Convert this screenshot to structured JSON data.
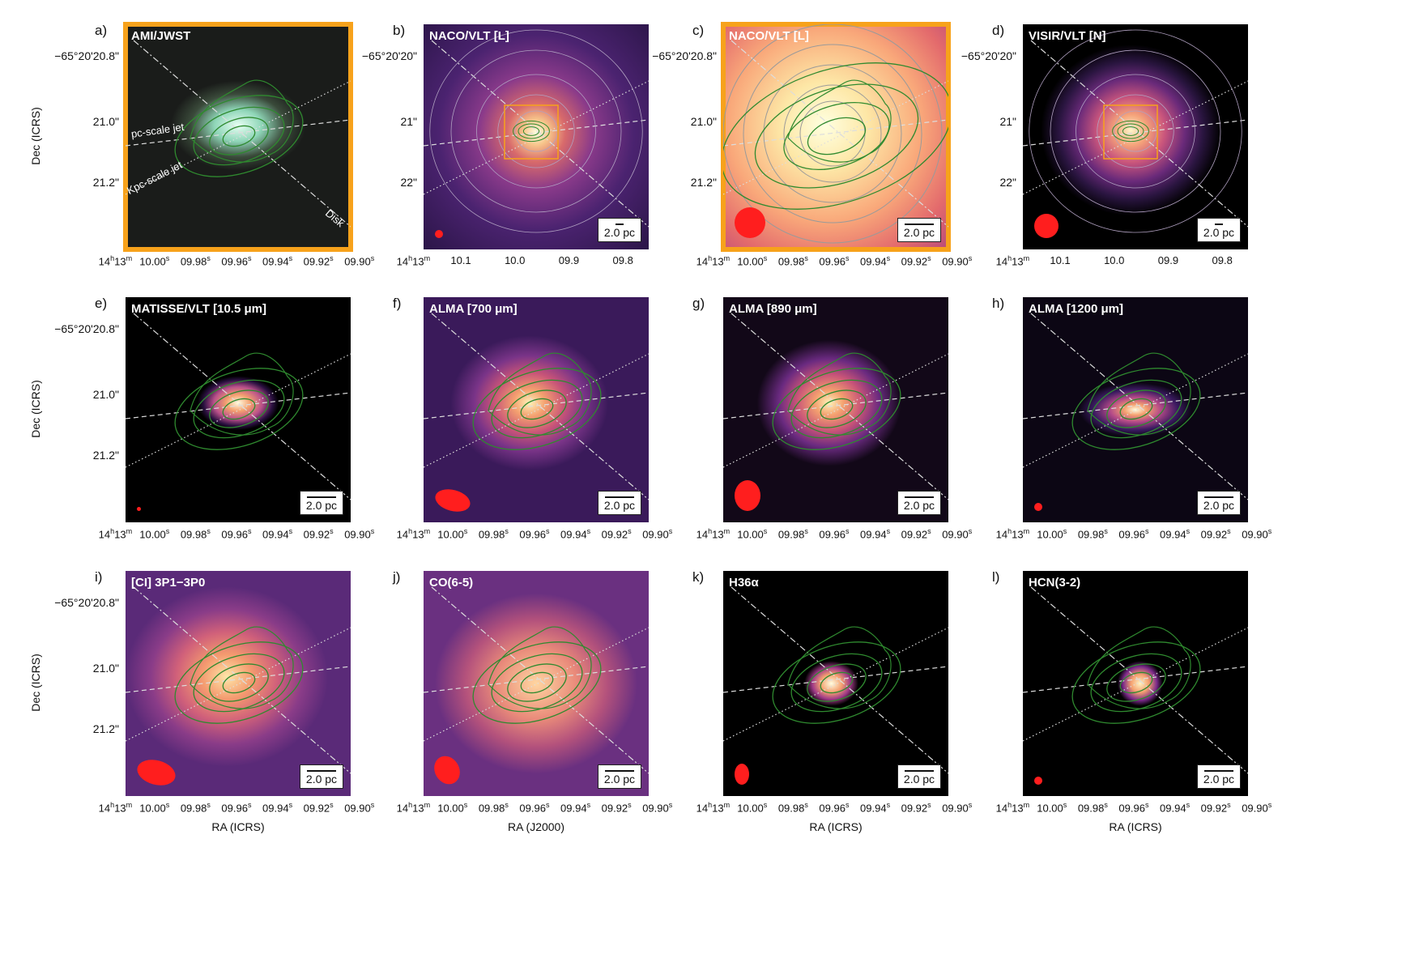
{
  "colors": {
    "highlight": "#f7a21b",
    "beam": "#ff1e1e",
    "contour_green": "#2f8a2f",
    "contour_grey": "#9a9a9a"
  },
  "panels": [
    {
      "label": "a)",
      "title": "AMI/JWST",
      "scale": "",
      "yticks": [
        "−65°20'20.8\"",
        "21.0\"",
        "21.2\""
      ],
      "xticks": [
        "14h13m",
        "10.00s",
        "09.98s",
        "09.96s",
        "09.94s",
        "09.92s",
        "09.90s"
      ],
      "overlays": [
        "pc-scale jet",
        "Kpc-scale jet",
        "Disk"
      ]
    },
    {
      "label": "b)",
      "title": "NACO/VLT [L]",
      "scale": "2.0 pc",
      "yticks": [
        "−65°20'20\"",
        "21\"",
        "22\""
      ],
      "xticks": [
        "14h13m",
        "10.1",
        "10.0",
        "09.9",
        "09.8"
      ]
    },
    {
      "label": "c)",
      "title": "NACO/VLT [L]",
      "scale": "2.0 pc",
      "yticks": [
        "−65°20'20.8\"",
        "21.0\"",
        "21.2\""
      ],
      "xticks": [
        "14h13m",
        "10.00s",
        "09.98s",
        "09.96s",
        "09.94s",
        "09.92s",
        "09.90s"
      ]
    },
    {
      "label": "d)",
      "title": "VISIR/VLT [N]",
      "scale": "2.0 pc",
      "yticks": [
        "−65°20'20\"",
        "21\"",
        "22\""
      ],
      "xticks": [
        "14h13m",
        "10.1",
        "10.0",
        "09.9",
        "09.8"
      ]
    },
    {
      "label": "e)",
      "title": "MATISSE/VLT [10.5 μm]",
      "scale": "2.0 pc",
      "yticks": [
        "−65°20'20.8\"",
        "21.0\"",
        "21.2\""
      ],
      "xticks": [
        "14h13m",
        "10.00s",
        "09.98s",
        "09.96s",
        "09.94s",
        "09.92s",
        "09.90s"
      ]
    },
    {
      "label": "f)",
      "title": "ALMA [700 μm]",
      "scale": "2.0 pc",
      "xticks": [
        "14h13m",
        "10.00s",
        "09.98s",
        "09.96s",
        "09.94s",
        "09.92s",
        "09.90s"
      ]
    },
    {
      "label": "g)",
      "title": "ALMA [890 μm]",
      "scale": "2.0 pc",
      "xticks": [
        "14h13m",
        "10.00s",
        "09.98s",
        "09.96s",
        "09.94s",
        "09.92s",
        "09.90s"
      ]
    },
    {
      "label": "h)",
      "title": "ALMA [1200 μm]",
      "scale": "2.0 pc",
      "xticks": [
        "14h13m",
        "10.00s",
        "09.98s",
        "09.96s",
        "09.94s",
        "09.92s",
        "09.90s"
      ]
    },
    {
      "label": "i)",
      "title": "[CI] 3P1−3P0",
      "scale": "2.0 pc",
      "yticks": [
        "−65°20'20.8\"",
        "21.0\"",
        "21.2\""
      ],
      "xticks": [
        "14h13m",
        "10.00s",
        "09.98s",
        "09.96s",
        "09.94s",
        "09.92s",
        "09.90s"
      ],
      "xtitle": "RA (ICRS)"
    },
    {
      "label": "j)",
      "title": "CO(6-5)",
      "scale": "2.0 pc",
      "xticks": [
        "14h13m",
        "10.00s",
        "09.98s",
        "09.96s",
        "09.94s",
        "09.92s",
        "09.90s"
      ],
      "xtitle": "RA (J2000)"
    },
    {
      "label": "k)",
      "title": "H36α",
      "scale": "2.0 pc",
      "xticks": [
        "14h13m",
        "10.00s",
        "09.98s",
        "09.96s",
        "09.94s",
        "09.92s",
        "09.90s"
      ],
      "xtitle": "RA (ICRS)"
    },
    {
      "label": "l)",
      "title": "HCN(3-2)",
      "scale": "2.0 pc",
      "xticks": [
        "14h13m",
        "10.00s",
        "09.98s",
        "09.96s",
        "09.94s",
        "09.92s",
        "09.90s"
      ],
      "xtitle": "RA (ICRS)"
    }
  ],
  "axis_title_dec": "Dec (ICRS)"
}
